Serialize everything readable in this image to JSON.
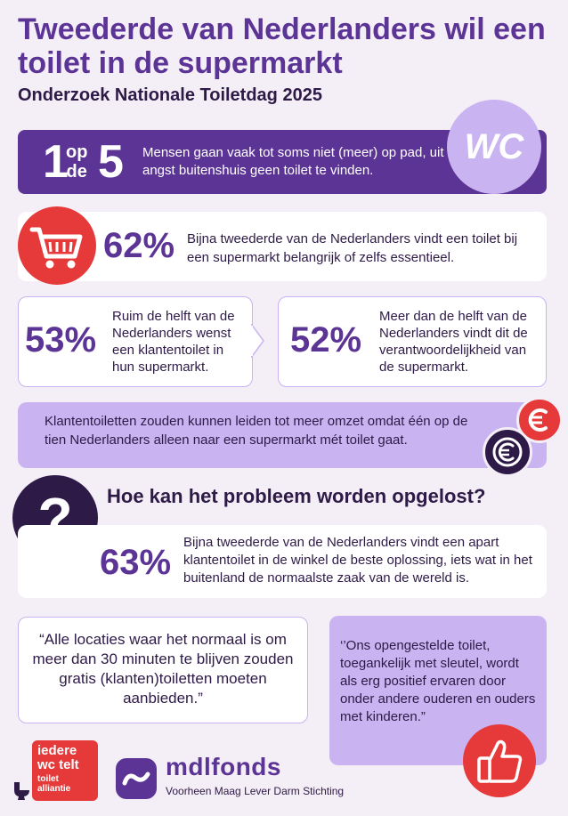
{
  "header": {
    "title": "Tweederde van Nederlanders wil een toilet in de supermarkt",
    "subtitle": "Onderzoek Nationale Toiletdag 2025"
  },
  "banner": {
    "number_one": "1",
    "op": "op",
    "de": "de",
    "number_five": "5",
    "text": "Mensen gaan vaak tot soms niet (meer) op pad, uit angst buitenshuis geen toilet te vinden.",
    "badge": "WC"
  },
  "stat_62": {
    "value": "62%",
    "text": "Bijna tweederde van de Nederlanders vindt een toilet bij een supermarkt belangrijk of zelfs essentieel.",
    "icon": "shopping-cart-icon"
  },
  "stat_53": {
    "value": "53%",
    "text": "Ruim de helft van de Nederlanders wenst een klantentoilet in hun supermarkt."
  },
  "stat_52": {
    "value": "52%",
    "text": "Meer dan de helft van de Nederlanders vindt dit de verantwoordelijkheid van de supermarkt."
  },
  "revenue": {
    "text": "Klantentoiletten zouden kunnen leiden tot meer omzet omdat één op de tien Nederlanders alleen naar een supermarkt mét toilet gaat.",
    "icons": [
      "euro-red-icon",
      "euro-dark-icon"
    ]
  },
  "solution": {
    "question": "Hoe kan het probleem worden opgelost?",
    "value": "63%",
    "text": "Bijna tweederde van de Nederlanders vindt een apart klantentoilet in de winkel de beste oplossing, iets wat in het buitenland de normaalste zaak van de wereld is."
  },
  "quotes": {
    "left": "“Alle locaties waar het normaal is om meer dan 30 minuten te blijven zouden gratis (klanten)toiletten moeten aanbieden.”",
    "right": "‘’Ons opengestelde toilet, toegankelijk met sleutel, wordt als erg positief ervaren door onder andere ouderen en ouders met kinderen.”"
  },
  "logos": {
    "iedere_main": "iedere wc telt",
    "iedere_sub": "toilet alliantie",
    "mdl_name": "mdlfonds",
    "mdl_sub": "Voorheen Maag Lever Darm Stichting"
  },
  "colors": {
    "purple": "#5b3495",
    "lavender": "#c9b3f0",
    "red": "#e63a3a",
    "dark": "#2e1a47",
    "background": "#f4eef7"
  }
}
